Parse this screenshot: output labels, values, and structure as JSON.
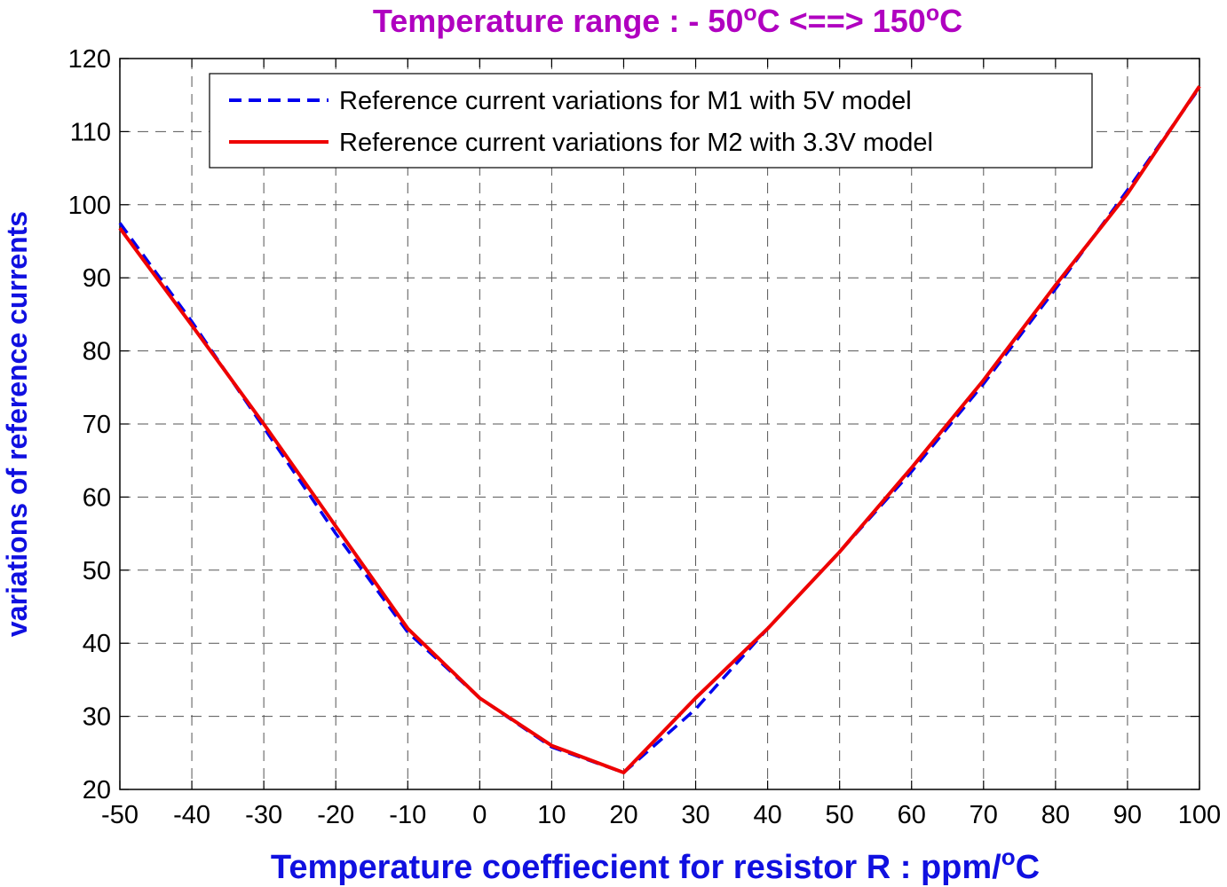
{
  "chart_data": {
    "type": "line",
    "title": {
      "prefix": "Temperature range : - 50",
      "sup1": "o",
      "middle": "C <==> 150",
      "sup2": "o",
      "suffix": "C"
    },
    "xlabel": {
      "main": "Temperature coeffiecient for resistor R : ppm/",
      "sup": "o",
      "tail": "C"
    },
    "ylabel": "variations of reference currents",
    "xlim": [
      -50,
      100
    ],
    "ylim": [
      20,
      120
    ],
    "xticks": [
      -50,
      -40,
      -30,
      -20,
      -10,
      0,
      10,
      20,
      30,
      40,
      50,
      60,
      70,
      80,
      90,
      100
    ],
    "yticks": [
      20,
      30,
      40,
      50,
      60,
      70,
      80,
      90,
      100,
      110,
      120
    ],
    "grid": true,
    "legend_position": "top",
    "series": [
      {
        "name": "Reference current variations for M1 with 5V model",
        "style": "dashed",
        "color": "#0000ee",
        "x": [
          -50,
          -40,
          -30,
          -20,
          -10,
          0,
          10,
          20,
          30,
          40,
          50,
          60,
          70,
          80,
          90,
          100
        ],
        "y": [
          97.5,
          84,
          69.5,
          55,
          41.5,
          32.5,
          25.8,
          22.3,
          31,
          42,
          52.5,
          63.5,
          75.5,
          88.5,
          102,
          116
        ]
      },
      {
        "name": "Reference current variations for M2 with 3.3V model",
        "style": "solid",
        "color": "#ee0000",
        "x": [
          -50,
          -40,
          -30,
          -20,
          -10,
          0,
          10,
          20,
          30,
          40,
          50,
          60,
          70,
          80,
          90,
          100
        ],
        "y": [
          96.8,
          83.5,
          70,
          56,
          42,
          32.5,
          26,
          22.3,
          32.5,
          42,
          52.5,
          64,
          76,
          89,
          101.5,
          116.2
        ]
      }
    ]
  }
}
